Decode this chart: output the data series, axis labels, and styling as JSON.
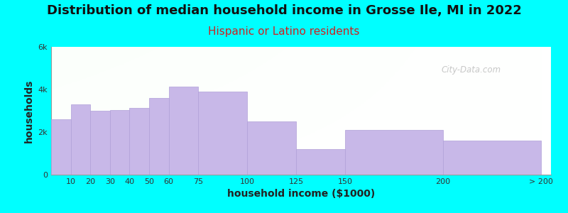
{
  "title": "Distribution of median household income in Grosse Ile, MI in 2022",
  "subtitle": "Hispanic or Latino residents",
  "xlabel": "household income ($1000)",
  "ylabel": "households",
  "background_color": "#00FFFF",
  "bar_color": "#C8B8E8",
  "bar_edge_color": "#B0A0D8",
  "watermark": "City-Data.com",
  "bin_edges": [
    0,
    10,
    20,
    30,
    40,
    50,
    60,
    75,
    100,
    125,
    150,
    200,
    250
  ],
  "bin_labels": [
    "10",
    "20",
    "30",
    "40",
    "50",
    "60",
    "75",
    "100",
    "125",
    "150",
    "200",
    "> 200"
  ],
  "values": [
    2600,
    3300,
    3000,
    3050,
    3150,
    3600,
    4150,
    3900,
    2500,
    1200,
    2100,
    1600
  ],
  "ylim": [
    0,
    6000
  ],
  "yticks": [
    0,
    2000,
    4000,
    6000
  ],
  "ytick_labels": [
    "0",
    "2k",
    "4k",
    "6k"
  ],
  "xtick_positions": [
    10,
    20,
    30,
    40,
    50,
    60,
    75,
    100,
    125,
    150,
    200,
    250
  ],
  "xtick_labels": [
    "10",
    "20",
    "30",
    "40",
    "50",
    "60",
    "75",
    "100",
    "125",
    "150",
    "200",
    "> 200"
  ],
  "title_fontsize": 13,
  "subtitle_fontsize": 11,
  "subtitle_color": "#CC2222",
  "axis_label_fontsize": 10
}
